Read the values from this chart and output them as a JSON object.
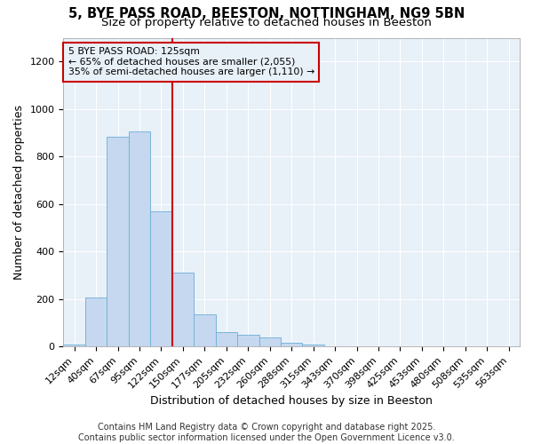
{
  "title1": "5, BYE PASS ROAD, BEESTON, NOTTINGHAM, NG9 5BN",
  "title2": "Size of property relative to detached houses in Beeston",
  "xlabel": "Distribution of detached houses by size in Beeston",
  "ylabel": "Number of detached properties",
  "categories": [
    "12sqm",
    "40sqm",
    "67sqm",
    "95sqm",
    "122sqm",
    "150sqm",
    "177sqm",
    "205sqm",
    "232sqm",
    "260sqm",
    "288sqm",
    "315sqm",
    "343sqm",
    "370sqm",
    "398sqm",
    "425sqm",
    "453sqm",
    "480sqm",
    "508sqm",
    "535sqm",
    "563sqm"
  ],
  "values": [
    10,
    205,
    885,
    905,
    570,
    310,
    135,
    60,
    50,
    40,
    15,
    10,
    2,
    2,
    1,
    1,
    1,
    1,
    1,
    1,
    1
  ],
  "bar_color": "#c5d8f0",
  "bar_edge_color": "#6baed6",
  "annotation_line1": "5 BYE PASS ROAD: 125sqm",
  "annotation_line2": "← 65% of detached houses are smaller (2,055)",
  "annotation_line3": "35% of semi-detached houses are larger (1,110) →",
  "vline_index": 4,
  "vline_color": "#cc0000",
  "annotation_box_color": "#cc0000",
  "ylim": [
    0,
    1300
  ],
  "yticks": [
    0,
    200,
    400,
    600,
    800,
    1000,
    1200
  ],
  "footer": "Contains HM Land Registry data © Crown copyright and database right 2025.\nContains public sector information licensed under the Open Government Licence v3.0.",
  "bg_color": "#ffffff",
  "plot_bg_color": "#e8f0f8",
  "grid_color": "#ffffff",
  "title_fontsize": 10.5,
  "subtitle_fontsize": 9.5,
  "tick_fontsize": 8,
  "ylabel_fontsize": 9,
  "xlabel_fontsize": 9,
  "footer_fontsize": 7
}
